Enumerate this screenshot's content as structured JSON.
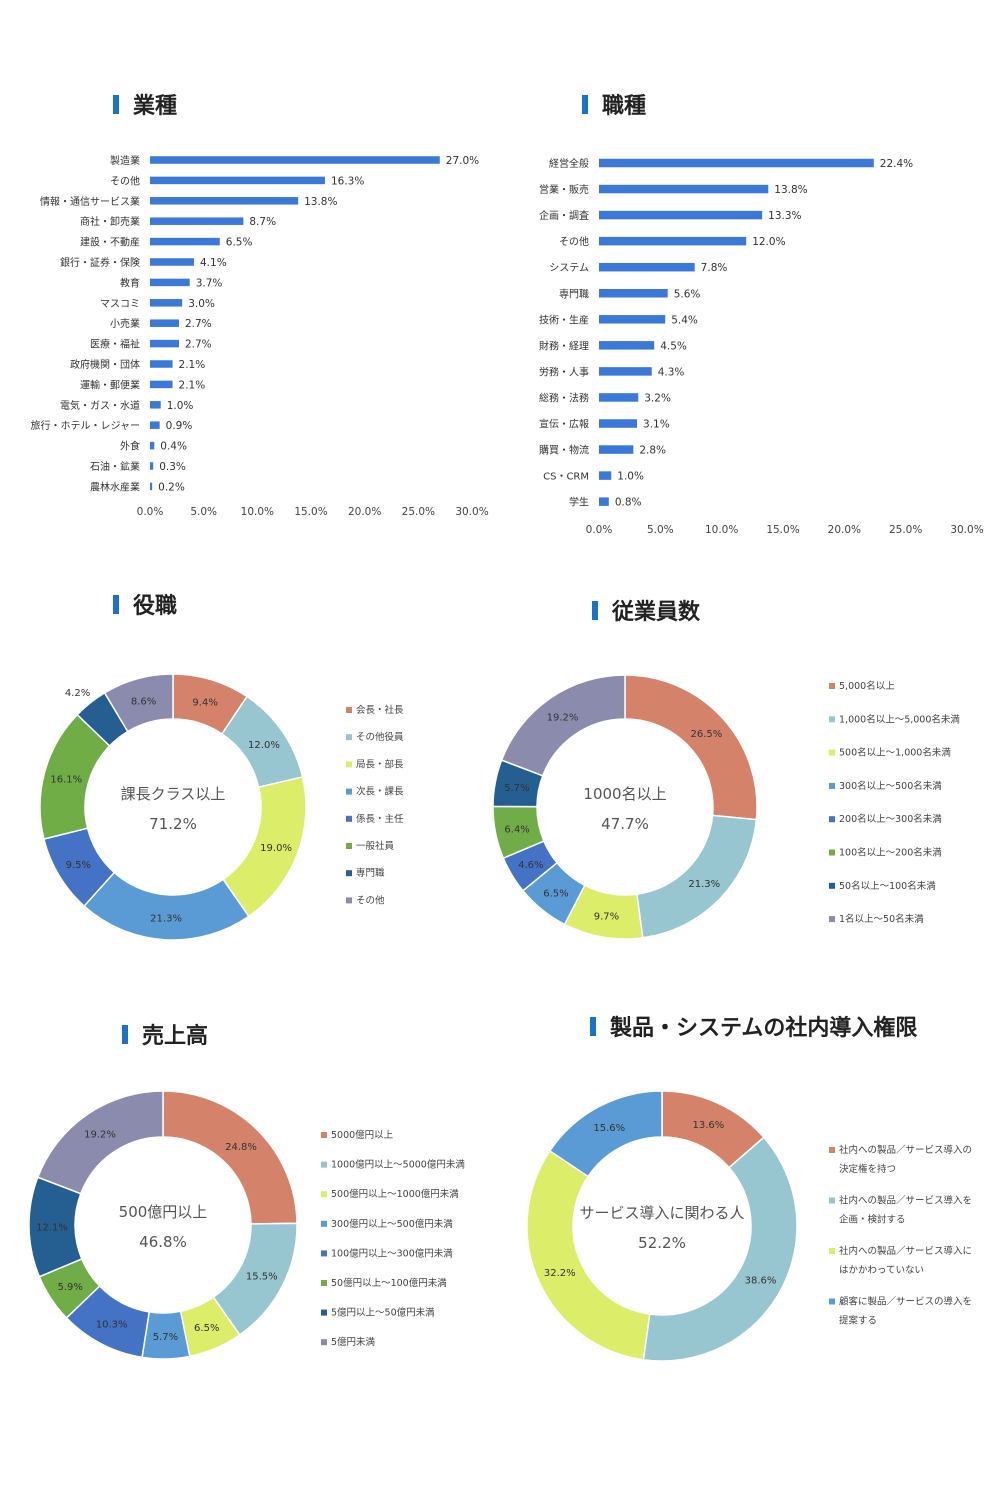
{
  "chart_data": [
    {
      "type": "bar",
      "title": "業種",
      "orientation": "horizontal",
      "categories": [
        "製造業",
        "その他",
        "情報・通信サービス業",
        "商社・卸売業",
        "建設・不動産",
        "銀行・証券・保険",
        "教育",
        "マスコミ",
        "小売業",
        "医療・福祉",
        "政府機関・団体",
        "運輸・郵便業",
        "電気・ガス・水道",
        "旅行・ホテル・レジャー",
        "外食",
        "石油・鉱業",
        "農林水産業"
      ],
      "values": [
        27.0,
        16.3,
        13.8,
        8.7,
        6.5,
        4.1,
        3.7,
        3.0,
        2.7,
        2.7,
        2.1,
        2.1,
        1.0,
        0.9,
        0.4,
        0.3,
        0.2
      ],
      "value_labels": [
        "27.0%",
        "16.3%",
        "13.8%",
        "8.7%",
        "6.5%",
        "4.1%",
        "3.7%",
        "3.0%",
        "2.7%",
        "2.7%",
        "2.1%",
        "2.1%",
        "1.0%",
        "0.9%",
        "0.4%",
        "0.3%",
        "0.2%"
      ],
      "xlim": [
        0,
        30
      ],
      "ticks": [
        "0.0%",
        "5.0%",
        "10.0%",
        "15.0%",
        "20.0%",
        "25.0%",
        "30.0%"
      ],
      "color": "#3c78d8"
    },
    {
      "type": "bar",
      "title": "職種",
      "orientation": "horizontal",
      "categories": [
        "経営全般",
        "営業・販売",
        "企画・調査",
        "その他",
        "システム",
        "専門職",
        "技術・生産",
        "財務・経理",
        "労務・人事",
        "総務・法務",
        "宣伝・広報",
        "購買・物流",
        "CS・CRM",
        "学生"
      ],
      "values": [
        22.4,
        13.8,
        13.3,
        12.0,
        7.8,
        5.6,
        5.4,
        4.5,
        4.3,
        3.2,
        3.1,
        2.8,
        1.0,
        0.8
      ],
      "value_labels": [
        "22.4%",
        "13.8%",
        "13.3%",
        "12.0%",
        "7.8%",
        "5.6%",
        "5.4%",
        "4.5%",
        "4.3%",
        "3.2%",
        "3.1%",
        "2.8%",
        "1.0%",
        "0.8%"
      ],
      "xlim": [
        0,
        30
      ],
      "ticks": [
        "0.0%",
        "5.0%",
        "10.0%",
        "15.0%",
        "20.0%",
        "25.0%",
        "30.0%"
      ],
      "color": "#3c78d8"
    },
    {
      "type": "pie",
      "style": "donut",
      "title": "役職",
      "categories": [
        "会長・社長",
        "その他役員",
        "局長・部長",
        "次長・課長",
        "係長・主任",
        "一般社員",
        "専門職",
        "その他"
      ],
      "values": [
        9.4,
        12.0,
        19.0,
        21.3,
        9.5,
        16.1,
        4.2,
        8.6
      ],
      "value_labels": [
        "9.4%",
        "12.0%",
        "19.0%",
        "21.3%",
        "9.5%",
        "16.1%",
        "4.2%",
        "8.6%"
      ],
      "colors": [
        "#d4826a",
        "#97c5d0",
        "#dced6a",
        "#5b9bd5",
        "#4472c4",
        "#70ad47",
        "#255e91",
        "#8b8bad"
      ],
      "center_label": "課長クラス以上",
      "center_value": "71.2%"
    },
    {
      "type": "pie",
      "style": "donut",
      "title": "従業員数",
      "categories": [
        "5,000名以上",
        "1,000名以上～5,000名未満",
        "500名以上～1,000名未満",
        "300名以上～500名未満",
        "200名以上～300名未満",
        "100名以上～200名未満",
        "50名以上～100名未満",
        "1名以上～50名未満"
      ],
      "values": [
        26.5,
        21.3,
        9.7,
        6.5,
        4.6,
        6.4,
        5.7,
        19.2
      ],
      "value_labels": [
        "26.5%",
        "21.3%",
        "9.7%",
        "6.5%",
        "4.6%",
        "6.4%",
        "5.7%",
        "19.2%"
      ],
      "colors": [
        "#d4826a",
        "#97c5d0",
        "#dced6a",
        "#5b9bd5",
        "#4472c4",
        "#70ad47",
        "#255e91",
        "#8b8bad"
      ],
      "center_label": "1000名以上",
      "center_value": "47.7%"
    },
    {
      "type": "pie",
      "style": "donut",
      "title": "売上高",
      "categories": [
        "5000億円以上",
        "1000億円以上～5000億円未満",
        "500億円以上～1000億円未満",
        "300億円以上～500億円未満",
        "100億円以上～300億円未満",
        "50億円以上～100億円未満",
        "5億円以上～50億円未満",
        "5億円未満"
      ],
      "values": [
        24.8,
        15.5,
        6.5,
        5.7,
        10.3,
        5.9,
        12.1,
        19.2
      ],
      "value_labels": [
        "24.8%",
        "15.5%",
        "6.5%",
        "5.7%",
        "10.3%",
        "5.9%",
        "12.1%",
        "19.2%"
      ],
      "colors": [
        "#d4826a",
        "#97c5d0",
        "#dced6a",
        "#5b9bd5",
        "#4472c4",
        "#70ad47",
        "#255e91",
        "#8b8bad"
      ],
      "center_label": "500億円以上",
      "center_value": "46.8%"
    },
    {
      "type": "pie",
      "style": "donut",
      "title": "製品・システムの社内導入権限",
      "categories": [
        "社内への製品／サービス導入の決定権を持つ",
        "社内への製品／サービス導入を企画・検討する",
        "社内への製品／サービス導入にはかかわっていない",
        "顧客に製品／サービスの導入を提案する"
      ],
      "legend_lines": [
        [
          "社内への製品／サービス導入の",
          "決定権を持つ"
        ],
        [
          "社内への製品／サービス導入を",
          "企画・検討する"
        ],
        [
          "社内への製品／サービス導入に",
          "はかかわっていない"
        ],
        [
          "顧客に製品／サービスの導入を",
          "提案する"
        ]
      ],
      "values": [
        13.6,
        38.6,
        32.2,
        15.6
      ],
      "value_labels": [
        "13.6%",
        "38.6%",
        "32.2%",
        "15.6%"
      ],
      "colors": [
        "#d4826a",
        "#97c5d0",
        "#dced6a",
        "#5b9bd5"
      ],
      "center_label": "サービス導入に関わる人",
      "center_value": "52.2%"
    }
  ],
  "accent_color": "#1a73c8"
}
